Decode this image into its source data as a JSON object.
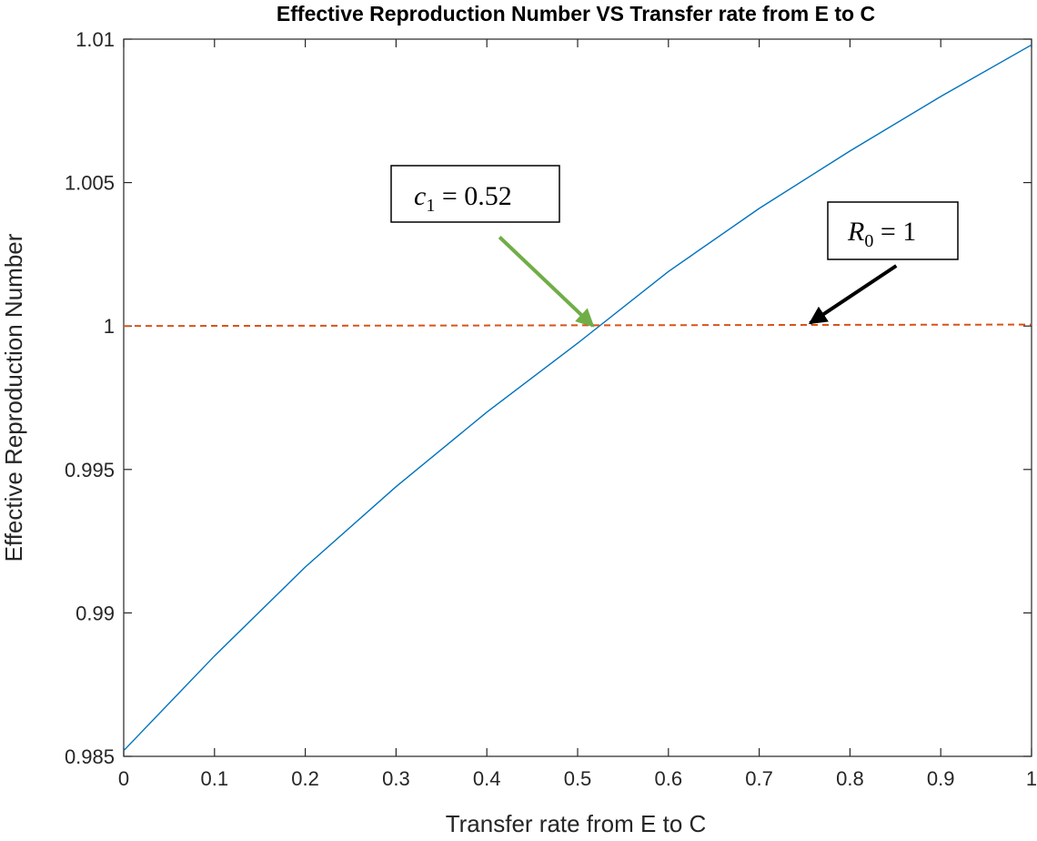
{
  "chart_data": {
    "type": "line",
    "title": "Effective Reproduction Number VS Transfer rate from E to C",
    "xlabel": "Transfer rate from E to C",
    "ylabel": "Effective Reproduction Number",
    "xlim": [
      0,
      1
    ],
    "ylim": [
      0.985,
      1.01
    ],
    "xticks": [
      0,
      0.1,
      0.2,
      0.3,
      0.4,
      0.5,
      0.6,
      0.7,
      0.8,
      0.9,
      1
    ],
    "xtick_labels": [
      "0",
      "0.1",
      "0.2",
      "0.3",
      "0.4",
      "0.5",
      "0.6",
      "0.7",
      "0.8",
      "0.9",
      "1"
    ],
    "yticks": [
      0.985,
      0.99,
      0.995,
      1,
      1.005,
      1.01
    ],
    "ytick_labels": [
      "0.985",
      "0.99",
      "0.995",
      "1",
      "1.005",
      "1.01"
    ],
    "grid": false,
    "series": [
      {
        "color": "#0072BD",
        "style": "solid",
        "x": [
          0,
          0.1,
          0.2,
          0.3,
          0.4,
          0.5,
          0.6,
          0.7,
          0.8,
          0.9,
          1.0
        ],
        "y": [
          0.9852,
          0.9885,
          0.9916,
          0.9944,
          0.997,
          0.9994,
          1.0019,
          1.0041,
          1.0061,
          1.008,
          1.0098
        ]
      },
      {
        "color": "#D95319",
        "style": "dashed",
        "x": [
          0,
          1
        ],
        "y": [
          1.0,
          1.00005
        ]
      }
    ],
    "annotations": [
      {
        "label_main": "c",
        "label_sub": "1",
        "label_rest": " = 0.52",
        "arrow_color": "#70AD47",
        "arrow_from": [
          0.414,
          1.0031
        ],
        "arrow_to": [
          0.517,
          1.0
        ]
      },
      {
        "label_main": "R",
        "label_sub": "0",
        "label_rest": " = 1",
        "arrow_color": "#000000",
        "arrow_from": [
          0.851,
          1.0021
        ],
        "arrow_to": [
          0.756,
          1.0001
        ]
      }
    ]
  }
}
